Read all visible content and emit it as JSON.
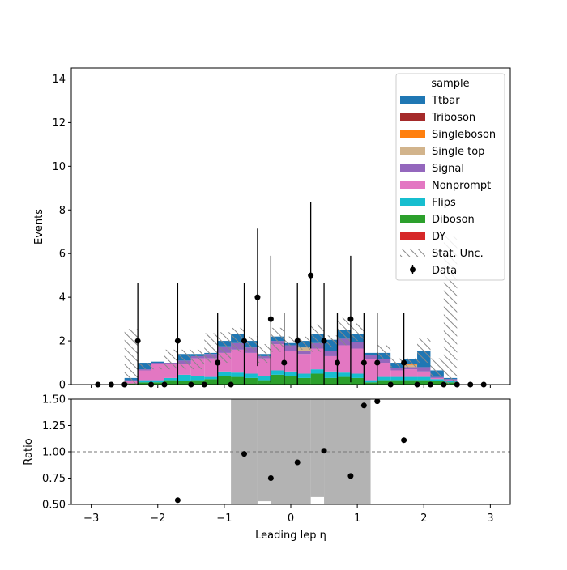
{
  "chart_data": [
    {
      "type": "bar",
      "panel": "main",
      "stacked": true,
      "ylabel": "Events",
      "xlim": [
        -3.3,
        3.3
      ],
      "ylim": [
        0,
        14.5
      ],
      "yticks": [
        0,
        2,
        4,
        6,
        8,
        10,
        12,
        14
      ],
      "bin_edges": [
        -2.5,
        -2.3,
        -2.1,
        -1.9,
        -1.7,
        -1.5,
        -1.3,
        -1.1,
        -0.9,
        -0.7,
        -0.5,
        -0.3,
        -0.1,
        0.1,
        0.3,
        0.5,
        0.7,
        0.9,
        1.1,
        1.3,
        1.5,
        1.7,
        1.9,
        2.1,
        2.3,
        2.5
      ],
      "legend": {
        "title": "sample",
        "location": "upper right"
      },
      "series": [
        {
          "name": "DY",
          "color": "#d62728",
          "values": [
            0,
            0,
            0,
            0,
            0,
            0,
            0,
            0,
            0,
            0,
            0,
            0,
            0,
            0,
            0,
            0,
            0,
            0,
            0,
            0,
            0,
            0,
            0,
            0,
            0
          ]
        },
        {
          "name": "Diboson",
          "color": "#2ca02c",
          "values": [
            0.05,
            0.1,
            0.1,
            0.2,
            0.15,
            0.2,
            0.25,
            0.4,
            0.35,
            0.3,
            0.2,
            0.45,
            0.4,
            0.3,
            0.5,
            0.3,
            0.35,
            0.3,
            0.1,
            0.2,
            0.2,
            0.2,
            0.2,
            0.15,
            0.1
          ]
        },
        {
          "name": "Flips",
          "color": "#17becf",
          "values": [
            0,
            0.1,
            0.1,
            0.1,
            0.3,
            0.2,
            0.1,
            0.2,
            0.2,
            0.2,
            0.2,
            0.2,
            0.2,
            0.2,
            0.2,
            0.3,
            0.2,
            0.2,
            0.1,
            0.15,
            0.15,
            0.15,
            0.15,
            0.1,
            0.05
          ]
        },
        {
          "name": "Nonprompt",
          "color": "#e377c2",
          "values": [
            0.1,
            0.45,
            0.75,
            0.65,
            0.5,
            0.8,
            0.85,
            0.85,
            1.05,
            0.95,
            0.8,
            1.2,
            0.95,
            0.9,
            0.95,
            0.7,
            1.25,
            1.15,
            0.95,
            0.65,
            0.3,
            0.35,
            0.25,
            0.05,
            0.05
          ]
        },
        {
          "name": "Signal",
          "color": "#9467bd",
          "values": [
            0.05,
            0.05,
            0.05,
            0.05,
            0.15,
            0.1,
            0.2,
            0.3,
            0.3,
            0.25,
            0.1,
            0.15,
            0.25,
            0.15,
            0.25,
            0.25,
            0.3,
            0.3,
            0.2,
            0.15,
            0.1,
            0.1,
            0.2,
            0.05,
            0.05
          ]
        },
        {
          "name": "Single top",
          "color": "#d2b48c",
          "values": [
            0,
            0,
            0,
            0,
            0,
            0,
            0,
            0,
            0,
            0,
            0,
            0,
            0,
            0.15,
            0,
            0,
            0,
            0,
            0,
            0,
            0,
            0.1,
            0,
            0,
            0
          ]
        },
        {
          "name": "Singleboson",
          "color": "#ff7f0e",
          "values": [
            0,
            0,
            0,
            0,
            0,
            0,
            0,
            0,
            0,
            0,
            0,
            0,
            0,
            0,
            0,
            0,
            0,
            0,
            0,
            0,
            0,
            0.05,
            0,
            0,
            0
          ]
        },
        {
          "name": "Triboson",
          "color": "#a52a2a",
          "values": [
            0,
            0,
            0,
            0,
            0,
            0,
            0,
            0,
            0,
            0,
            0,
            0,
            0,
            0,
            0,
            0,
            0,
            0,
            0,
            0,
            0,
            0,
            0,
            0,
            0
          ]
        },
        {
          "name": "Ttbar",
          "color": "#1f77b4",
          "values": [
            0.1,
            0.3,
            0.05,
            0,
            0.3,
            0.1,
            0.05,
            0.25,
            0.4,
            0.3,
            0.1,
            0.2,
            0.1,
            0.3,
            0.4,
            0.5,
            0.4,
            0.35,
            0.1,
            0.3,
            0.25,
            0.2,
            0.75,
            0.3,
            0.05
          ]
        }
      ],
      "stat_unc_band": {
        "label": "Stat. Unc.",
        "lo": [
          0,
          0.7,
          0.7,
          0.7,
          0.7,
          0.7,
          1.0,
          1.0,
          1.5,
          1.5,
          1.0,
          1.5,
          1.7,
          1.6,
          1.5,
          1.7,
          1.8,
          2.0,
          1.5,
          1.2,
          0.8,
          0.8,
          1.0,
          0.4,
          0
        ],
        "hi": [
          2.55,
          1.0,
          0.8,
          1.6,
          1.6,
          1.6,
          2.35,
          2.4,
          2.6,
          2.2,
          1.85,
          2.6,
          2.2,
          2.2,
          2.75,
          2.25,
          3.05,
          2.8,
          1.5,
          1.8,
          1.2,
          1.2,
          2.15,
          1.2,
          6.8
        ]
      },
      "data_points": {
        "label": "Data",
        "x": [
          -2.9,
          -2.7,
          -2.5,
          -2.3,
          -2.1,
          -1.9,
          -1.7,
          -1.5,
          -1.3,
          -1.1,
          -0.9,
          -0.7,
          -0.5,
          -0.3,
          -0.1,
          0.1,
          0.3,
          0.5,
          0.7,
          0.9,
          1.1,
          1.3,
          1.5,
          1.7,
          1.9,
          2.1,
          2.3,
          2.5,
          2.7,
          2.9
        ],
        "y": [
          0,
          0,
          0,
          2,
          0,
          0,
          2,
          0,
          0,
          1,
          0,
          2,
          4,
          3,
          1,
          2,
          5,
          2,
          1,
          3,
          1,
          1,
          0,
          1,
          0,
          0,
          0,
          0,
          0,
          0
        ],
        "err": [
          0,
          0,
          0,
          2.65,
          0,
          0,
          2.65,
          0,
          0,
          2.3,
          0,
          2.65,
          3.15,
          2.9,
          2.3,
          2.65,
          3.35,
          2.65,
          2.3,
          2.9,
          2.3,
          2.3,
          0,
          2.3,
          0,
          0,
          0,
          0,
          0,
          0
        ]
      }
    },
    {
      "type": "scatter",
      "panel": "ratio",
      "xlabel": "Leading lep η",
      "ylabel": "Ratio",
      "xlim": [
        -3.3,
        3.3
      ],
      "ylim": [
        0.5,
        1.5
      ],
      "xticks": [
        -3,
        -2,
        -1,
        0,
        1,
        2,
        3
      ],
      "yticks": [
        0.5,
        0.75,
        1.0,
        1.25,
        1.5
      ],
      "reference_line": 1.0,
      "x": [
        -1.7,
        -0.7,
        -0.3,
        0.1,
        0.5,
        0.9,
        1.1,
        1.3,
        1.7
      ],
      "y": [
        0.54,
        0.98,
        0.75,
        0.9,
        1.01,
        0.77,
        1.44,
        1.48,
        1.11
      ],
      "unc_band": [
        {
          "x0": -2.5,
          "x1": -2.3,
          "lo": 0.0,
          "hi": 0.5
        },
        {
          "x0": -0.9,
          "x1": -0.5,
          "lo": 0.0,
          "hi": 1.5
        },
        {
          "x0": -0.5,
          "x1": -0.3,
          "lo": 0.53,
          "hi": 1.5
        },
        {
          "x0": -0.3,
          "x1": 0.3,
          "lo": 0.0,
          "hi": 1.5
        },
        {
          "x0": 0.3,
          "x1": 0.5,
          "lo": 0.57,
          "hi": 1.5
        },
        {
          "x0": 0.5,
          "x1": 1.2,
          "lo": 0.0,
          "hi": 1.5
        }
      ]
    }
  ]
}
